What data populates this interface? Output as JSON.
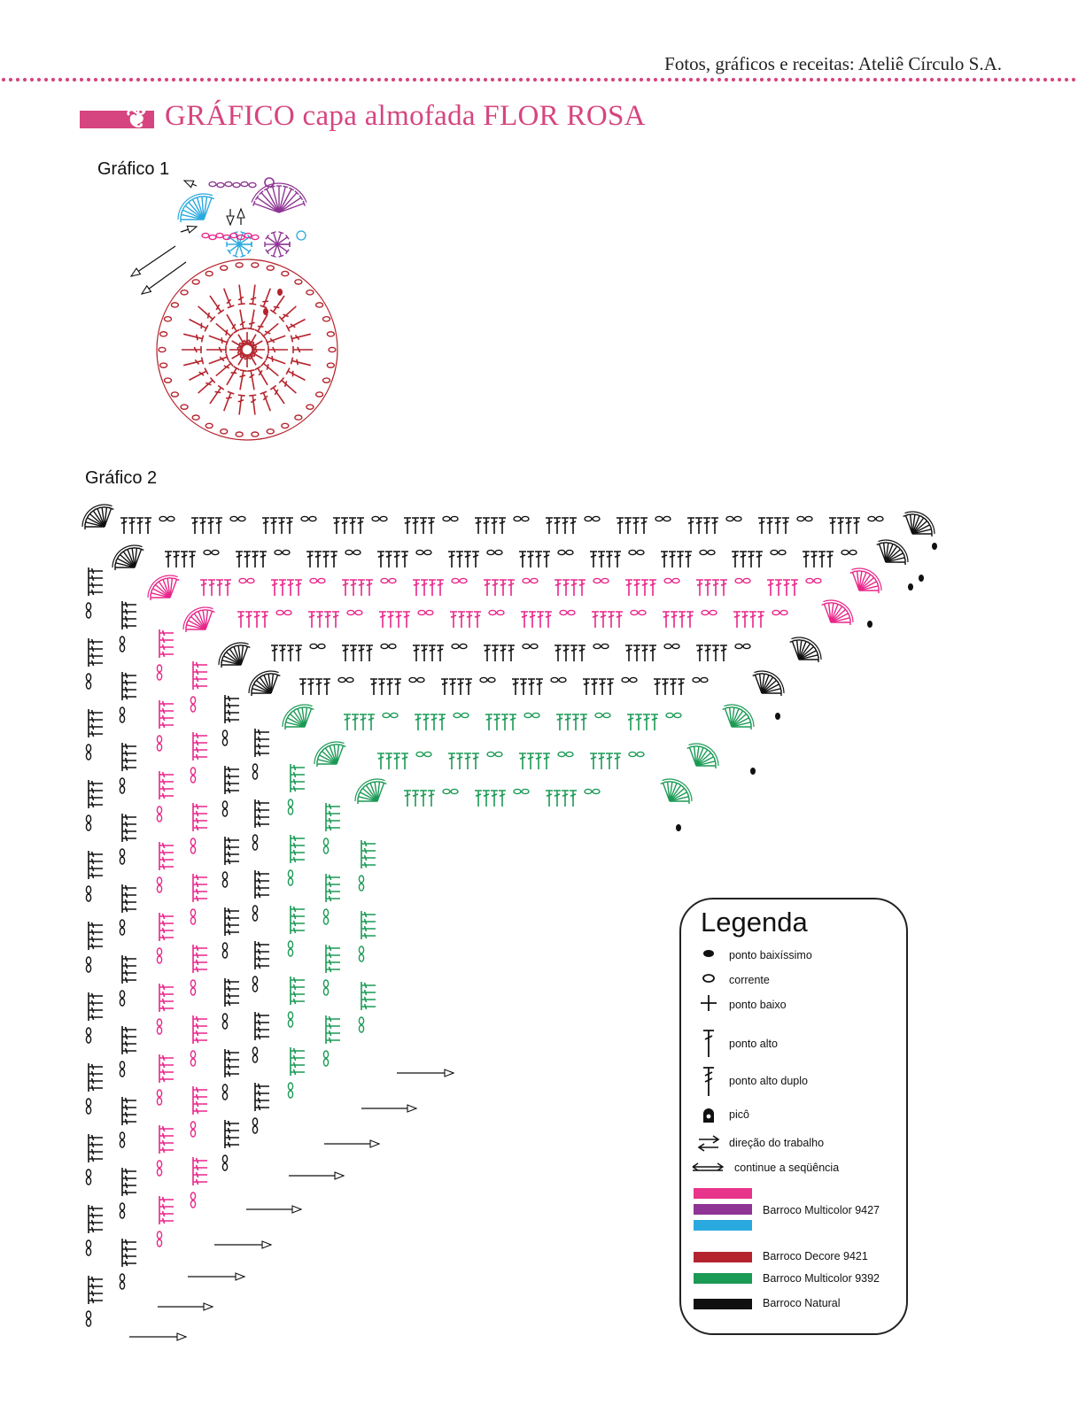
{
  "header": {
    "credit": "Fotos, gráficos e receitas: Ateliê Círculo S.A.",
    "title": "GRÁFICO capa almofada FLOR ROSA",
    "title_icon": "ornament-icon"
  },
  "chart1": {
    "label": "Gráfico 1"
  },
  "chart2": {
    "label": "Gráfico 2"
  },
  "colors": {
    "accent": "#d6457f",
    "pink": "#e8268a",
    "purple": "#8e3494",
    "blue": "#2aa9df",
    "red": "#b5242e",
    "green": "#1a9a55",
    "black": "#111111"
  },
  "legend": {
    "title": "Legenda",
    "symbols": [
      {
        "icon": "slip-stitch-icon",
        "label": "ponto baixíssimo"
      },
      {
        "icon": "chain-icon",
        "label": "corrente"
      },
      {
        "icon": "single-crochet-icon",
        "label": "ponto baixo"
      },
      {
        "icon": "double-crochet-icon",
        "label": "ponto alto"
      },
      {
        "icon": "treble-crochet-icon",
        "label": "ponto alto duplo"
      },
      {
        "icon": "picot-icon",
        "label": "picô"
      },
      {
        "icon": "work-direction-icon",
        "label": "direção do trabalho"
      },
      {
        "icon": "continue-sequence-icon",
        "label": "continue a seqüência"
      }
    ],
    "yarns": [
      {
        "swatches": [
          "#e8348a",
          "#8e3494",
          "#2aa9df"
        ],
        "label": "Barroco Multicolor 9427"
      },
      {
        "swatches": [
          "#b5242e"
        ],
        "label": "Barroco Decore 9421"
      },
      {
        "swatches": [
          "#1a9a55"
        ],
        "label": "Barroco Multicolor 9392"
      },
      {
        "swatches": [
          "#111111"
        ],
        "label": "Barroco Natural"
      }
    ]
  }
}
